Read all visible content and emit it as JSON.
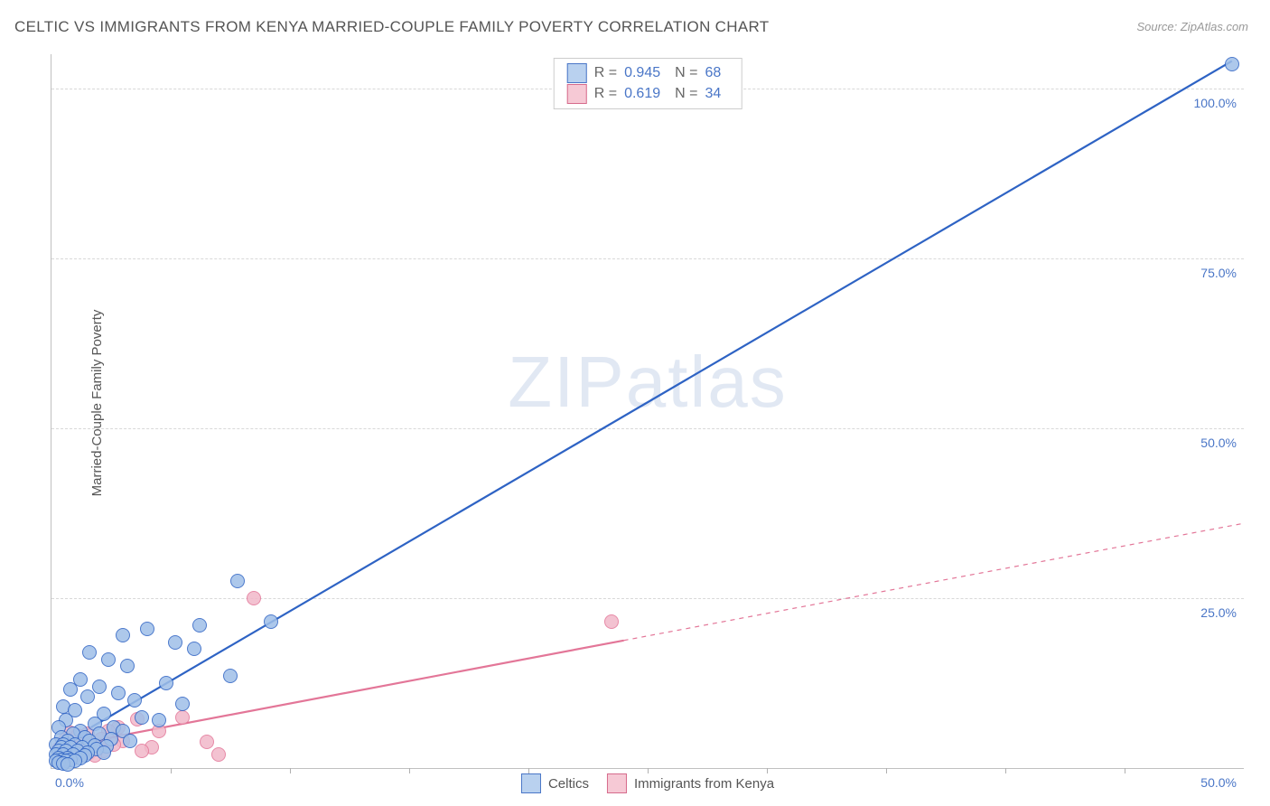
{
  "title": "CELTIC VS IMMIGRANTS FROM KENYA MARRIED-COUPLE FAMILY POVERTY CORRELATION CHART",
  "source": "Source: ZipAtlas.com",
  "ylabel": "Married-Couple Family Poverty",
  "watermark": {
    "zip": "ZIP",
    "atlas": "atlas"
  },
  "plot": {
    "background": "#ffffff",
    "border_color": "#c0c0c0",
    "grid_color": "#d8d8d8",
    "xlim": [
      0,
      50
    ],
    "ylim": [
      0,
      105
    ],
    "ytick_positions": [
      25,
      50,
      75,
      100
    ],
    "ytick_labels": [
      "25.0%",
      "50.0%",
      "75.0%",
      "100.0%"
    ],
    "tick_color": "#4a76c7",
    "tick_fontsize": 14,
    "xtick_left": "0.0%",
    "xtick_right": "50.0%",
    "xtick_minor_positions": [
      5,
      10,
      15,
      20,
      25,
      30,
      35,
      40,
      45
    ],
    "point_radius": 8,
    "point_stroke_width": 1.5,
    "point_fill_opacity": 0.32
  },
  "stats": {
    "rows": [
      {
        "swatch_fill": "#b9d1ef",
        "swatch_border": "#4a76c7",
        "r_label": "R =",
        "r_value": "0.945",
        "n_label": "N =",
        "n_value": "68"
      },
      {
        "swatch_fill": "#f6c9d5",
        "swatch_border": "#d66b8c",
        "r_label": "R =",
        "r_value": "0.619",
        "n_label": "N =",
        "n_value": "34"
      }
    ]
  },
  "legend": {
    "items": [
      {
        "label": "Celtics",
        "fill": "#b9d1ef",
        "border": "#4a76c7"
      },
      {
        "label": "Immigrants from Kenya",
        "fill": "#f6c9d5",
        "border": "#d66b8c"
      }
    ]
  },
  "series": {
    "blue": {
      "color": "#2e63c4",
      "fill": "#9fbfe8",
      "line_width": 2.2,
      "trend": {
        "x1": 0.2,
        "y1": 3,
        "x2": 49.5,
        "y2": 104,
        "solid_to_x": 49.5
      },
      "points": [
        [
          49.5,
          103.5
        ],
        [
          7.8,
          27.5
        ],
        [
          9.2,
          21.5
        ],
        [
          6.2,
          21
        ],
        [
          4.0,
          20.5
        ],
        [
          3.0,
          19.5
        ],
        [
          5.2,
          18.5
        ],
        [
          6.0,
          17.5
        ],
        [
          1.6,
          17
        ],
        [
          2.4,
          16
        ],
        [
          3.2,
          15
        ],
        [
          7.5,
          13.5
        ],
        [
          1.2,
          13
        ],
        [
          4.8,
          12.5
        ],
        [
          2.0,
          12
        ],
        [
          0.8,
          11.5
        ],
        [
          2.8,
          11
        ],
        [
          1.5,
          10.5
        ],
        [
          3.5,
          10
        ],
        [
          5.5,
          9.5
        ],
        [
          0.5,
          9
        ],
        [
          1.0,
          8.5
        ],
        [
          2.2,
          8
        ],
        [
          3.8,
          7.5
        ],
        [
          4.5,
          7
        ],
        [
          0.6,
          7
        ],
        [
          1.8,
          6.5
        ],
        [
          2.6,
          6
        ],
        [
          0.3,
          6
        ],
        [
          1.2,
          5.5
        ],
        [
          3.0,
          5.5
        ],
        [
          0.9,
          5
        ],
        [
          2.0,
          5
        ],
        [
          0.4,
          4.5
        ],
        [
          1.4,
          4.5
        ],
        [
          2.5,
          4.2
        ],
        [
          0.7,
          4
        ],
        [
          1.6,
          4
        ],
        [
          3.3,
          4
        ],
        [
          0.2,
          3.5
        ],
        [
          0.5,
          3.5
        ],
        [
          1.0,
          3.5
        ],
        [
          1.8,
          3.3
        ],
        [
          2.3,
          3.2
        ],
        [
          0.4,
          3
        ],
        [
          0.8,
          3
        ],
        [
          1.3,
          3
        ],
        [
          1.9,
          2.8
        ],
        [
          0.3,
          2.5
        ],
        [
          0.6,
          2.5
        ],
        [
          1.1,
          2.5
        ],
        [
          1.5,
          2.3
        ],
        [
          2.2,
          2.2
        ],
        [
          0.2,
          2
        ],
        [
          0.5,
          2
        ],
        [
          0.9,
          2
        ],
        [
          1.4,
          1.8
        ],
        [
          0.3,
          1.5
        ],
        [
          0.7,
          1.5
        ],
        [
          1.2,
          1.5
        ],
        [
          0.4,
          1.2
        ],
        [
          0.8,
          1.2
        ],
        [
          0.2,
          1
        ],
        [
          0.6,
          1
        ],
        [
          1.0,
          1
        ],
        [
          0.3,
          0.8
        ],
        [
          0.5,
          0.7
        ],
        [
          0.7,
          0.5
        ]
      ]
    },
    "pink": {
      "color": "#e37698",
      "fill": "#f1b8c9",
      "line_width": 2.2,
      "trend": {
        "x1": 0.2,
        "y1": 3,
        "x2": 50,
        "y2": 36,
        "solid_to_x": 24
      },
      "points": [
        [
          23.5,
          21.5
        ],
        [
          8.5,
          25
        ],
        [
          5.5,
          7.5
        ],
        [
          7.0,
          2.0
        ],
        [
          3.6,
          7.2
        ],
        [
          4.2,
          3.0
        ],
        [
          2.8,
          6.0
        ],
        [
          1.2,
          4.5
        ],
        [
          6.5,
          3.8
        ],
        [
          2.0,
          3.0
        ],
        [
          0.8,
          5.2
        ],
        [
          1.6,
          2.2
        ],
        [
          3.0,
          4.0
        ],
        [
          0.5,
          3.5
        ],
        [
          1.0,
          2.8
        ],
        [
          2.4,
          5.5
        ],
        [
          0.4,
          2.0
        ],
        [
          1.4,
          3.6
        ],
        [
          0.9,
          1.5
        ],
        [
          2.2,
          2.5
        ],
        [
          0.6,
          4.2
        ],
        [
          1.8,
          1.8
        ],
        [
          0.3,
          2.8
        ],
        [
          1.1,
          4.8
        ],
        [
          2.6,
          3.5
        ],
        [
          0.7,
          1.2
        ],
        [
          1.5,
          5.0
        ],
        [
          3.8,
          2.5
        ],
        [
          0.5,
          1.8
        ],
        [
          1.3,
          2.0
        ],
        [
          2.1,
          4.2
        ],
        [
          0.4,
          1.0
        ],
        [
          4.5,
          5.5
        ],
        [
          0.8,
          2.5
        ]
      ]
    }
  }
}
